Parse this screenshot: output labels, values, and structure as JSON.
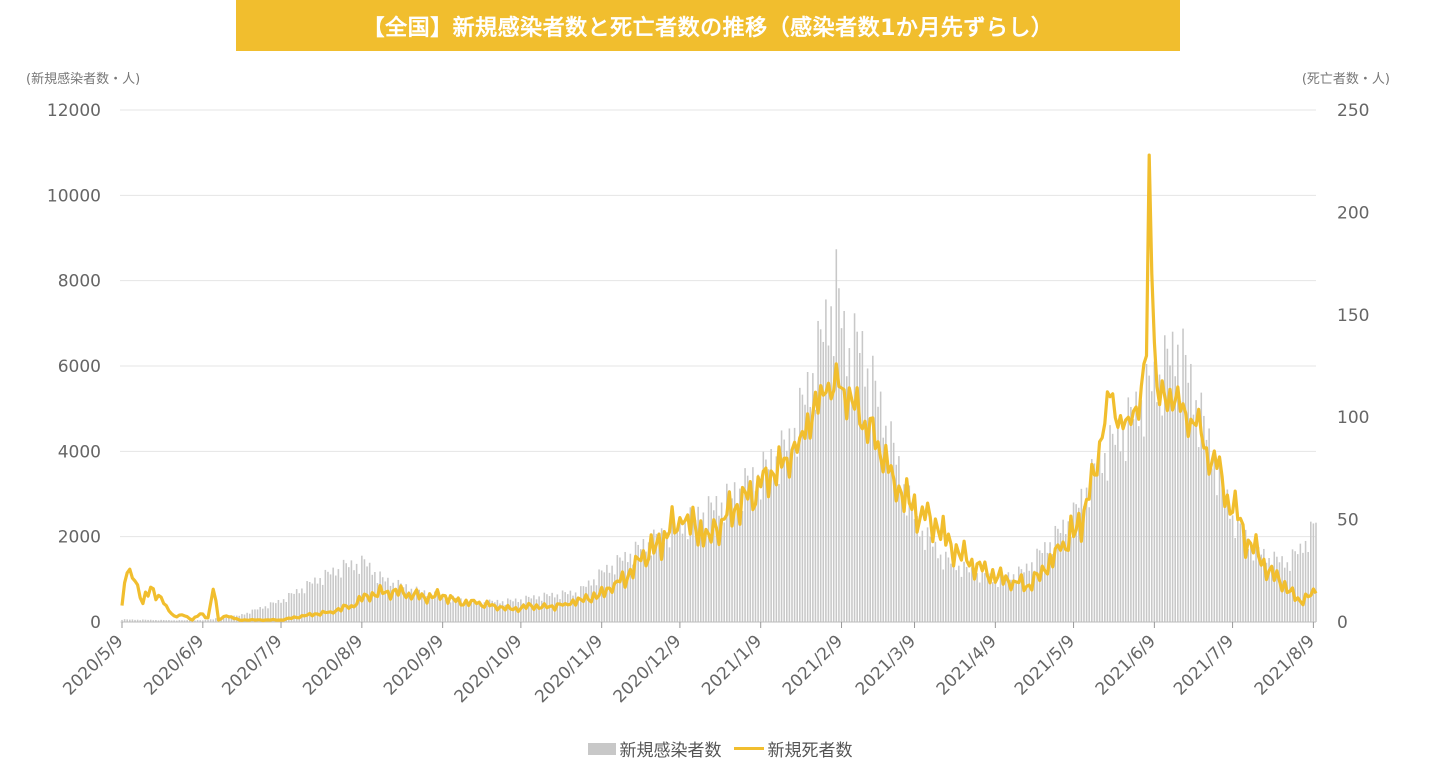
{
  "title": "【全国】新規感染者数と死亡者数の推移（感染者数1か月先ずらし）",
  "left_axis_unit": "(新規感染者数・人)",
  "right_axis_unit": "(死亡者数・人)",
  "colors": {
    "banner": "#f1be2e",
    "line": "#f1be2e",
    "bar": "#c8c8c8",
    "grid": "#e4e4e4",
    "axis_text": "#666666"
  },
  "chart_data": {
    "type": "bar+line",
    "title": "【全国】新規感染者数と死亡者数の推移（感染者数1か月先ずらし）",
    "x_tick_labels": [
      "2020/5/9",
      "2020/6/9",
      "2020/7/9",
      "2020/8/9",
      "2020/9/9",
      "2020/10/9",
      "2020/11/9",
      "2020/12/9",
      "2021/1/9",
      "2021/2/9",
      "2021/3/9",
      "2021/4/9",
      "2021/5/9",
      "2021/6/9",
      "2021/7/9",
      "2021/8/9"
    ],
    "y_left": {
      "label": "(新規感染者数・人)",
      "range": [
        0,
        12000
      ],
      "ticks": [
        0,
        2000,
        4000,
        6000,
        8000,
        10000,
        12000
      ]
    },
    "y_right": {
      "label": "(死亡者数・人)",
      "range": [
        0,
        250
      ],
      "ticks": [
        0,
        50,
        100,
        150,
        200,
        250
      ]
    },
    "grid": true,
    "legend": {
      "position": "bottom-center",
      "items": [
        "新規感染者数",
        "新規死者数"
      ]
    },
    "series": [
      {
        "name": "新規感染者数",
        "type": "bar",
        "axis": "left",
        "anchors": [
          [
            0,
            60
          ],
          [
            20,
            40
          ],
          [
            31,
            40
          ],
          [
            45,
            150
          ],
          [
            61,
            500
          ],
          [
            75,
            1000
          ],
          [
            85,
            1300
          ],
          [
            93,
            1400
          ],
          [
            100,
            1000
          ],
          [
            115,
            700
          ],
          [
            123,
            600
          ],
          [
            135,
            450
          ],
          [
            150,
            500
          ],
          [
            160,
            600
          ],
          [
            175,
            700
          ],
          [
            185,
            1200
          ],
          [
            200,
            1800
          ],
          [
            215,
            2300
          ],
          [
            230,
            2800
          ],
          [
            245,
            3500
          ],
          [
            256,
            4200
          ],
          [
            264,
            5600
          ],
          [
            270,
            7000
          ],
          [
            274,
            7800
          ],
          [
            278,
            6400
          ],
          [
            283,
            6500
          ],
          [
            290,
            5200
          ],
          [
            298,
            3600
          ],
          [
            305,
            2300
          ],
          [
            315,
            1500
          ],
          [
            325,
            1200
          ],
          [
            336,
            1000
          ],
          [
            346,
            1200
          ],
          [
            355,
            1800
          ],
          [
            365,
            2500
          ],
          [
            375,
            3800
          ],
          [
            385,
            4600
          ],
          [
            394,
            5500
          ],
          [
            398,
            5800
          ],
          [
            402,
            6200
          ],
          [
            405,
            6500
          ],
          [
            410,
            5600
          ],
          [
            418,
            4000
          ],
          [
            426,
            2500
          ],
          [
            433,
            1800
          ],
          [
            440,
            1500
          ],
          [
            447,
            1400
          ],
          [
            452,
            1700
          ],
          [
            457,
            2200
          ],
          [
            458,
            2400
          ]
        ]
      },
      {
        "name": "新規死者数",
        "type": "line",
        "axis": "right",
        "anchors": [
          [
            0,
            8
          ],
          [
            2,
            24
          ],
          [
            5,
            20
          ],
          [
            8,
            9
          ],
          [
            11,
            17
          ],
          [
            14,
            13
          ],
          [
            17,
            8
          ],
          [
            20,
            3
          ],
          [
            24,
            3
          ],
          [
            27,
            1
          ],
          [
            30,
            4
          ],
          [
            33,
            2
          ],
          [
            35,
            16
          ],
          [
            37,
            1
          ],
          [
            40,
            3
          ],
          [
            45,
            1
          ],
          [
            55,
            1
          ],
          [
            61,
            1
          ],
          [
            70,
            3
          ],
          [
            80,
            5
          ],
          [
            88,
            8
          ],
          [
            94,
            13
          ],
          [
            102,
            15
          ],
          [
            110,
            14
          ],
          [
            116,
            12
          ],
          [
            123,
            13
          ],
          [
            128,
            10
          ],
          [
            136,
            9
          ],
          [
            143,
            8
          ],
          [
            150,
            6
          ],
          [
            157,
            8
          ],
          [
            163,
            7
          ],
          [
            170,
            9
          ],
          [
            176,
            11
          ],
          [
            183,
            13
          ],
          [
            189,
            19
          ],
          [
            194,
            22
          ],
          [
            199,
            30
          ],
          [
            205,
            38
          ],
          [
            210,
            44
          ],
          [
            215,
            48
          ],
          [
            220,
            46
          ],
          [
            225,
            43
          ],
          [
            230,
            50
          ],
          [
            235,
            55
          ],
          [
            240,
            60
          ],
          [
            245,
            66
          ],
          [
            250,
            72
          ],
          [
            255,
            80
          ],
          [
            260,
            90
          ],
          [
            265,
            102
          ],
          [
            270,
            112
          ],
          [
            275,
            115
          ],
          [
            280,
            108
          ],
          [
            285,
            98
          ],
          [
            290,
            88
          ],
          [
            296,
            70
          ],
          [
            302,
            58
          ],
          [
            308,
            50
          ],
          [
            313,
            45
          ],
          [
            318,
            38
          ],
          [
            324,
            30
          ],
          [
            330,
            25
          ],
          [
            336,
            22
          ],
          [
            342,
            20
          ],
          [
            348,
            18
          ],
          [
            354,
            25
          ],
          [
            360,
            35
          ],
          [
            366,
            45
          ],
          [
            371,
            60
          ],
          [
            376,
            90
          ],
          [
            379,
            110
          ],
          [
            382,
            95
          ],
          [
            386,
            100
          ],
          [
            389,
            105
          ],
          [
            391,
            115
          ],
          [
            393,
            130
          ],
          [
            394,
            228
          ],
          [
            395,
            170
          ],
          [
            397,
            115
          ],
          [
            400,
            110
          ],
          [
            404,
            108
          ],
          [
            408,
            102
          ],
          [
            412,
            96
          ],
          [
            416,
            85
          ],
          [
            420,
            75
          ],
          [
            424,
            62
          ],
          [
            428,
            50
          ],
          [
            432,
            40
          ],
          [
            436,
            32
          ],
          [
            440,
            25
          ],
          [
            444,
            20
          ],
          [
            448,
            15
          ],
          [
            452,
            10
          ],
          [
            456,
            13
          ],
          [
            458,
            14
          ]
        ]
      }
    ],
    "x_range_days": [
      0,
      458
    ],
    "tick_day_offsets": [
      0,
      31,
      61,
      92,
      123,
      153,
      184,
      214,
      245,
      276,
      304,
      335,
      365,
      396,
      426,
      457
    ]
  }
}
